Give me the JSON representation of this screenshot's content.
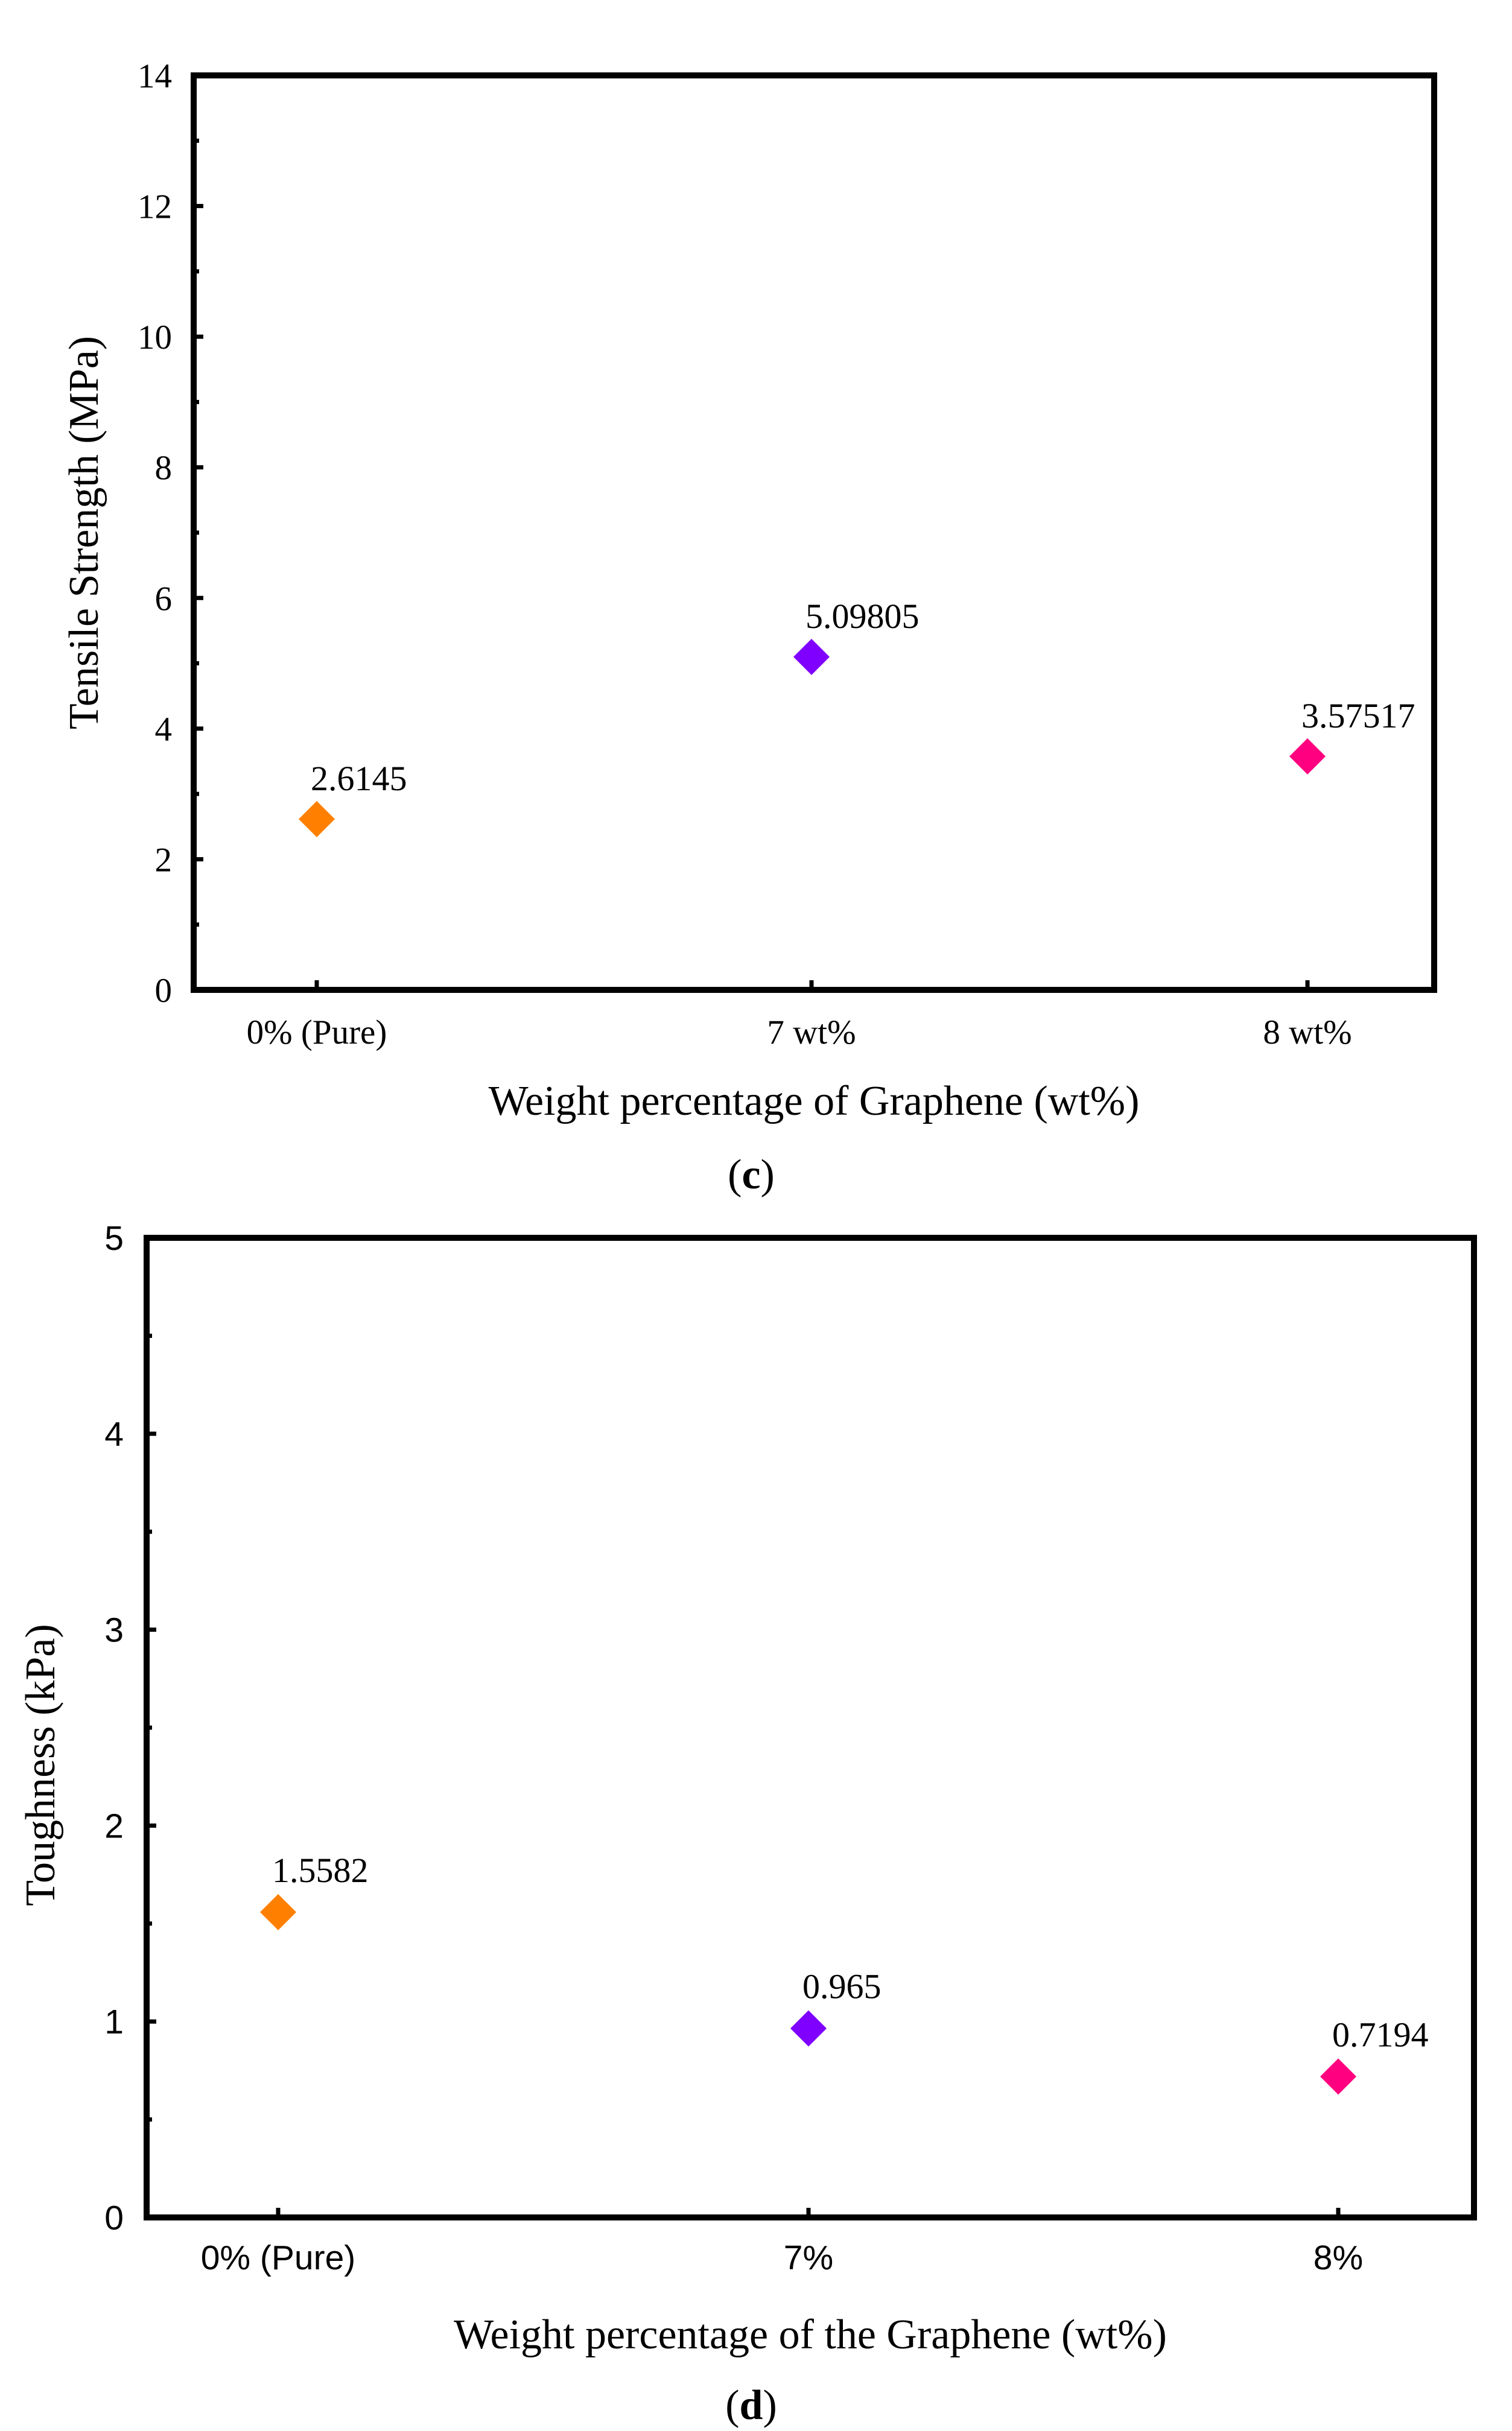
{
  "chart_data": [
    {
      "type": "scatter",
      "panel_label": "c",
      "categories": [
        "0% (Pure)",
        "7 wt%",
        "8 wt%"
      ],
      "values": [
        2.6145,
        5.09805,
        3.57517
      ],
      "value_labels": [
        "2.6145",
        "5.09805",
        "3.57517"
      ],
      "marker_colors": [
        "#FF8000",
        "#8000FF",
        "#FF0080"
      ],
      "marker": "diamond",
      "xlabel": "Weight percentage of Graphene (wt%)",
      "ylabel": "Tensile Strength (MPa)",
      "ylim": [
        0,
        14
      ],
      "y_major_ticks": [
        0,
        2,
        4,
        6,
        8,
        10,
        12,
        14
      ],
      "y_tick_labels": [
        "0",
        "2",
        "4",
        "6",
        "8",
        "10",
        "12",
        "14"
      ],
      "y_minor_ticks": [
        1,
        3,
        5,
        7,
        9,
        11,
        13
      ],
      "grid": false,
      "caption_open": "(",
      "caption_letter": "c",
      "caption_close": ")"
    },
    {
      "type": "scatter",
      "panel_label": "d",
      "categories": [
        "0% (Pure)",
        "7%",
        "8%"
      ],
      "values": [
        1.5582,
        0.965,
        0.7194
      ],
      "value_labels": [
        "1.5582",
        "0.965",
        "0.7194"
      ],
      "marker_colors": [
        "#FF8000",
        "#8000FF",
        "#FF0080"
      ],
      "marker": "diamond",
      "xlabel": "Weight percentage of the Graphene (wt%)",
      "ylabel": "Toughness (kPa)",
      "ylim": [
        0,
        5
      ],
      "y_major_ticks": [
        0,
        1,
        2,
        3,
        4,
        5
      ],
      "y_tick_labels": [
        "0",
        "1",
        "2",
        "3",
        "4",
        "5"
      ],
      "y_minor_ticks": [
        0.5,
        1.5,
        2.5,
        3.5,
        4.5
      ],
      "grid": false,
      "caption_open": "(",
      "caption_letter": "d",
      "caption_close": ")"
    }
  ]
}
